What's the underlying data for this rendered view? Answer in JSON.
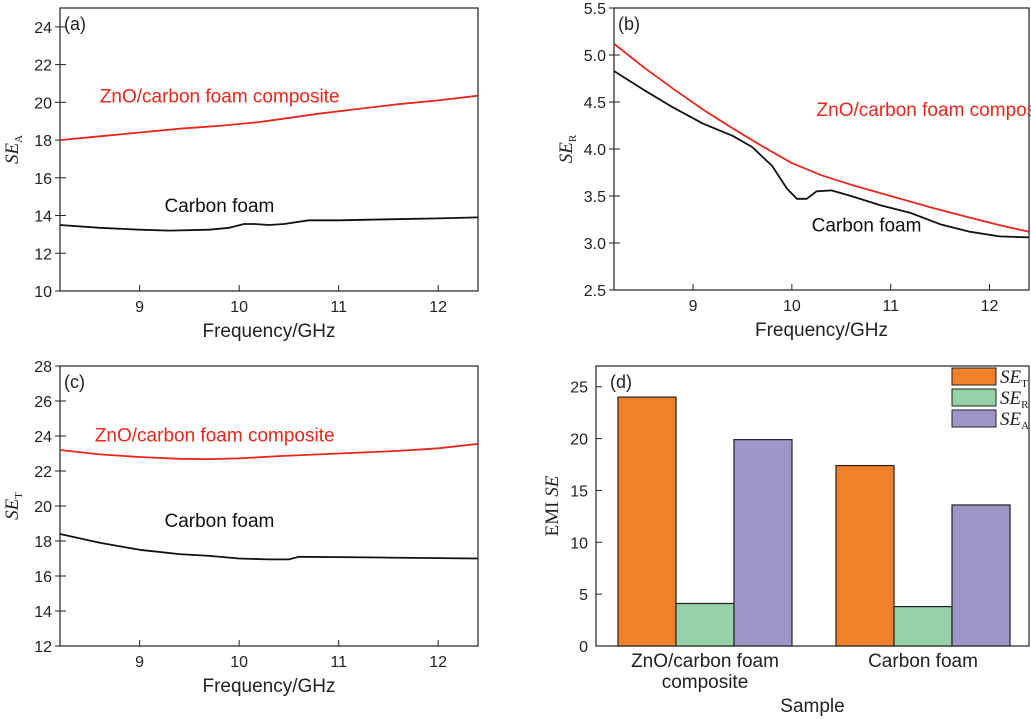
{
  "chart_data": [
    {
      "id": "a",
      "type": "line",
      "panel_label": "(a)",
      "xlabel": "Frequency/GHz",
      "ylabel": {
        "main": "SE",
        "sub": "A"
      },
      "xlim": [
        8.2,
        12.4
      ],
      "ylim": [
        10,
        25
      ],
      "xticks": [
        9,
        10,
        11,
        12
      ],
      "yticks": [
        10,
        12,
        14,
        16,
        18,
        20,
        22,
        24
      ],
      "series": [
        {
          "name": "ZnO/carbon foam composite",
          "color": "#e8261c",
          "x": [
            8.2,
            8.6,
            9.0,
            9.4,
            9.8,
            10.2,
            10.4,
            10.8,
            11.2,
            11.6,
            12.0,
            12.4
          ],
          "y": [
            18.0,
            18.2,
            18.4,
            18.6,
            18.75,
            18.95,
            19.1,
            19.4,
            19.65,
            19.9,
            20.1,
            20.35
          ]
        },
        {
          "name": "Carbon foam",
          "color": "#111111",
          "x": [
            8.2,
            8.6,
            9.0,
            9.3,
            9.7,
            9.9,
            10.05,
            10.15,
            10.3,
            10.45,
            10.7,
            11.0,
            11.5,
            12.0,
            12.4
          ],
          "y": [
            13.5,
            13.35,
            13.25,
            13.2,
            13.25,
            13.35,
            13.55,
            13.55,
            13.5,
            13.55,
            13.75,
            13.75,
            13.8,
            13.85,
            13.9
          ]
        }
      ]
    },
    {
      "id": "b",
      "type": "line",
      "panel_label": "(b)",
      "xlabel": "Frequency/GHz",
      "ylabel": {
        "main": "SE",
        "sub": "R"
      },
      "xlim": [
        8.2,
        12.4
      ],
      "ylim": [
        2.5,
        5.5
      ],
      "xticks": [
        9,
        10,
        11,
        12
      ],
      "yticks": [
        2.5,
        3.0,
        3.5,
        4.0,
        4.5,
        5.0,
        5.5
      ],
      "series": [
        {
          "name": "ZnO/carbon foam composite",
          "color": "#e8261c",
          "x": [
            8.2,
            8.5,
            8.8,
            9.1,
            9.4,
            9.7,
            10.0,
            10.3,
            10.6,
            11.0,
            11.4,
            11.8,
            12.1,
            12.4
          ],
          "y": [
            5.12,
            4.87,
            4.64,
            4.42,
            4.22,
            4.03,
            3.85,
            3.72,
            3.62,
            3.5,
            3.38,
            3.27,
            3.19,
            3.12
          ]
        },
        {
          "name": "Carbon foam",
          "color": "#111111",
          "x": [
            8.2,
            8.5,
            8.8,
            9.1,
            9.4,
            9.6,
            9.8,
            9.95,
            10.05,
            10.15,
            10.25,
            10.4,
            10.6,
            10.9,
            11.2,
            11.5,
            11.8,
            12.1,
            12.4
          ],
          "y": [
            4.83,
            4.63,
            4.44,
            4.27,
            4.14,
            4.02,
            3.82,
            3.58,
            3.47,
            3.47,
            3.55,
            3.56,
            3.5,
            3.4,
            3.32,
            3.2,
            3.12,
            3.07,
            3.06
          ]
        }
      ]
    },
    {
      "id": "c",
      "type": "line",
      "panel_label": "(c)",
      "xlabel": "Frequency/GHz",
      "ylabel": {
        "main": "SE",
        "sub": "T"
      },
      "xlim": [
        8.2,
        12.4
      ],
      "ylim": [
        12,
        28
      ],
      "xticks": [
        9,
        10,
        11,
        12
      ],
      "yticks": [
        12,
        14,
        16,
        18,
        20,
        22,
        24,
        26,
        28
      ],
      "series": [
        {
          "name": "ZnO/carbon foam composite",
          "color": "#e8261c",
          "x": [
            8.2,
            8.6,
            9.0,
            9.4,
            9.7,
            10.0,
            10.4,
            10.8,
            11.2,
            11.6,
            12.0,
            12.4
          ],
          "y": [
            23.2,
            22.95,
            22.8,
            22.7,
            22.68,
            22.72,
            22.85,
            22.95,
            23.05,
            23.15,
            23.3,
            23.55
          ]
        },
        {
          "name": "Carbon foam",
          "color": "#111111",
          "x": [
            8.2,
            8.6,
            9.0,
            9.4,
            9.7,
            10.0,
            10.3,
            10.5,
            10.6,
            11.0,
            11.5,
            12.0,
            12.4
          ],
          "y": [
            18.4,
            17.9,
            17.5,
            17.25,
            17.15,
            17.0,
            16.95,
            16.95,
            17.1,
            17.08,
            17.05,
            17.02,
            17.0
          ]
        }
      ]
    },
    {
      "id": "d",
      "type": "bar",
      "panel_label": "(d)",
      "xlabel": "Sample",
      "ylabel": "EMI SE",
      "ylim": [
        0,
        27
      ],
      "yticks": [
        0,
        5,
        10,
        15,
        20,
        25
      ],
      "categories": [
        [
          "ZnO/carbon foam",
          "composite"
        ],
        [
          "Carbon foam"
        ]
      ],
      "series": [
        {
          "name": {
            "main": "SE",
            "sub": "T"
          },
          "color": "#f0802a",
          "values": [
            24.0,
            17.4
          ]
        },
        {
          "name": {
            "main": "SE",
            "sub": "R"
          },
          "color": "#96d2a8",
          "values": [
            4.1,
            3.8
          ]
        },
        {
          "name": {
            "main": "SE",
            "sub": "A"
          },
          "color": "#9d96c9",
          "values": [
            19.9,
            13.6
          ]
        }
      ]
    }
  ],
  "annotations": {
    "a": [
      {
        "text": "ZnO/carbon foam composite",
        "color": "#e8261c",
        "x": 8.6,
        "y": 20.0
      },
      {
        "text": "Carbon foam",
        "color": "#111111",
        "x": 9.25,
        "y": 14.2
      }
    ],
    "b": [
      {
        "text": "ZnO/carbon foam composite",
        "color": "#e8261c",
        "x": 10.25,
        "y": 4.35
      },
      {
        "text": "Carbon foam",
        "color": "#111111",
        "x": 10.2,
        "y": 3.12
      }
    ],
    "c": [
      {
        "text": "ZnO/carbon foam composite",
        "color": "#e8261c",
        "x": 8.55,
        "y": 23.7
      },
      {
        "text": "Carbon foam",
        "color": "#111111",
        "x": 9.25,
        "y": 18.8
      }
    ]
  }
}
